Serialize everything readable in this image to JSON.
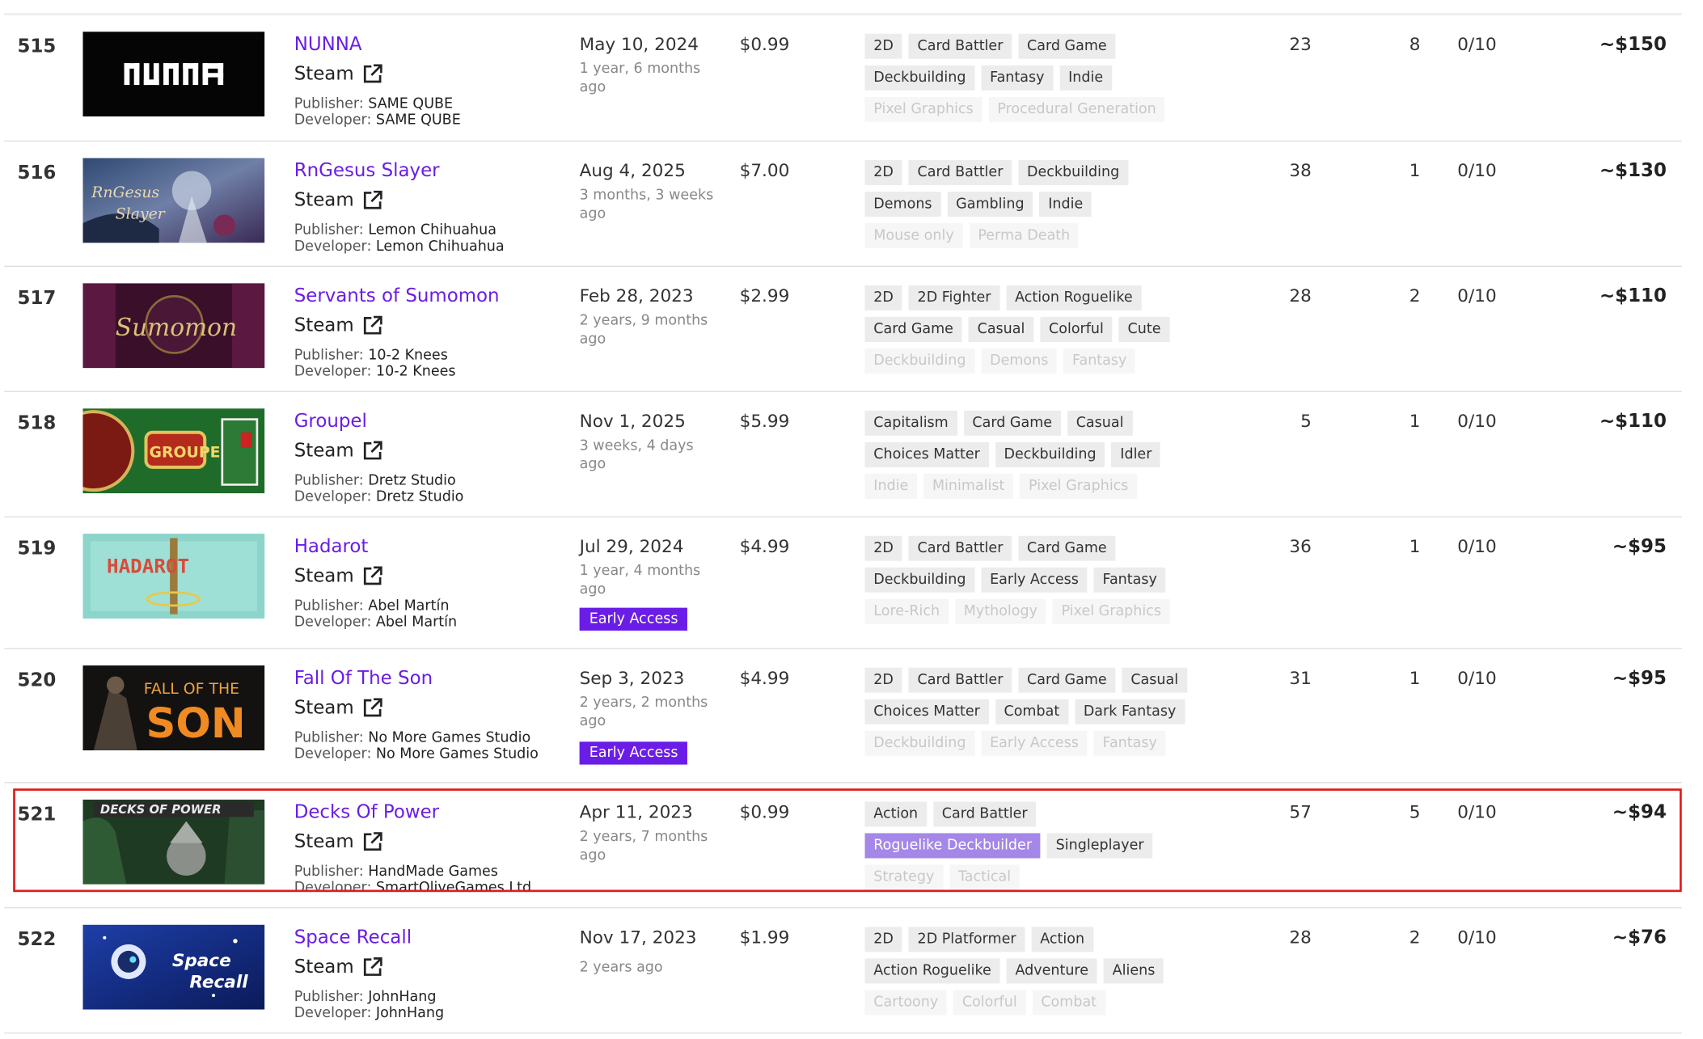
{
  "store_label": "Steam",
  "publisher_key": "Publisher:",
  "developer_key": "Developer:",
  "highlight_color": "#e01c1c",
  "accent_color": "#6a1de6",
  "rows": [
    {
      "rank": "515",
      "title": "NUNNA",
      "date": "May 10, 2024",
      "ago": "1 year, 6 months ago",
      "price": "$0.99",
      "tags": [
        [
          "2D",
          "Card Battler",
          "Card Game"
        ],
        [
          "Deckbuilding",
          "Fantasy",
          "Indie"
        ],
        [
          "Pixel Graphics",
          "Procedural Generation"
        ]
      ],
      "reviews": "23",
      "followers": "8",
      "score": "0/10",
      "revenue": "~$150",
      "publisher": "SAME QUBE",
      "developer": "SAME QUBE"
    },
    {
      "rank": "516",
      "title": "RnGesus Slayer",
      "date": "Aug 4, 2025",
      "ago": "3 months, 3 weeks ago",
      "price": "$7.00",
      "tags": [
        [
          "2D",
          "Card Battler",
          "Deckbuilding"
        ],
        [
          "Demons",
          "Gambling",
          "Indie"
        ],
        [
          "Mouse only",
          "Perma Death"
        ]
      ],
      "reviews": "38",
      "followers": "1",
      "score": "0/10",
      "revenue": "~$130",
      "publisher": "Lemon Chihuahua",
      "developer": "Lemon Chihuahua"
    },
    {
      "rank": "517",
      "title": "Servants of Sumomon",
      "date": "Feb 28, 2023",
      "ago": "2 years, 9 months ago",
      "price": "$2.99",
      "tags": [
        [
          "2D",
          "2D Fighter",
          "Action Roguelike"
        ],
        [
          "Card Game",
          "Casual",
          "Colorful",
          "Cute"
        ],
        [
          "Deckbuilding",
          "Demons",
          "Fantasy"
        ]
      ],
      "reviews": "28",
      "followers": "2",
      "score": "0/10",
      "revenue": "~$110",
      "publisher": "10-2 Knees",
      "developer": "10-2 Knees"
    },
    {
      "rank": "518",
      "title": "Groupel",
      "date": "Nov 1, 2025",
      "ago": "3 weeks, 4 days ago",
      "price": "$5.99",
      "tags": [
        [
          "Capitalism",
          "Card Game",
          "Casual"
        ],
        [
          "Choices Matter",
          "Deckbuilding",
          "Idler"
        ],
        [
          "Indie",
          "Minimalist",
          "Pixel Graphics"
        ]
      ],
      "reviews": "5",
      "followers": "1",
      "score": "0/10",
      "revenue": "~$110",
      "publisher": "Dretz Studio",
      "developer": "Dretz Studio"
    },
    {
      "rank": "519",
      "title": "Hadarot",
      "date": "Jul 29, 2024",
      "ago": "1 year, 4 months ago",
      "price": "$4.99",
      "badge": "Early Access",
      "tags": [
        [
          "2D",
          "Card Battler",
          "Card Game"
        ],
        [
          "Deckbuilding",
          "Early Access",
          "Fantasy"
        ],
        [
          "Lore-Rich",
          "Mythology",
          "Pixel Graphics"
        ]
      ],
      "reviews": "36",
      "followers": "1",
      "score": "0/10",
      "revenue": "~$95",
      "publisher": "Abel Martín",
      "developer": "Abel Martín"
    },
    {
      "rank": "520",
      "title": "Fall Of The Son",
      "date": "Sep 3, 2023",
      "ago": "2 years, 2 months ago",
      "price": "$4.99",
      "badge": "Early Access",
      "tags": [
        [
          "2D",
          "Card Battler",
          "Card Game",
          "Casual"
        ],
        [
          "Choices Matter",
          "Combat",
          "Dark Fantasy"
        ],
        [
          "Deckbuilding",
          "Early Access",
          "Fantasy"
        ]
      ],
      "reviews": "31",
      "followers": "1",
      "score": "0/10",
      "revenue": "~$95",
      "publisher": "No More Games Studio",
      "developer": "No More Games Studio"
    },
    {
      "rank": "521",
      "title": "Decks Of Power",
      "date": "Apr 11, 2023",
      "ago": "2 years, 7 months ago",
      "price": "$0.99",
      "tags": [
        [
          "Action",
          "Card Battler"
        ],
        [
          "Roguelike Deckbuilder",
          "Singleplayer"
        ],
        [
          "Strategy",
          "Tactical"
        ]
      ],
      "reviews": "57",
      "followers": "5",
      "score": "0/10",
      "revenue": "~$94",
      "publisher": "HandMade Games",
      "developer": "SmartOliveGames Ltd"
    },
    {
      "rank": "522",
      "title": "Space Recall",
      "date": "Nov 17, 2023",
      "ago": "2 years ago",
      "price": "$1.99",
      "tags": [
        [
          "2D",
          "2D Platformer",
          "Action"
        ],
        [
          "Action Roguelike",
          "Adventure",
          "Aliens"
        ],
        [
          "Cartoony",
          "Colorful",
          "Combat"
        ]
      ],
      "reviews": "28",
      "followers": "2",
      "score": "0/10",
      "revenue": "~$76",
      "publisher": "JohnHang",
      "developer": "JohnHang"
    }
  ]
}
